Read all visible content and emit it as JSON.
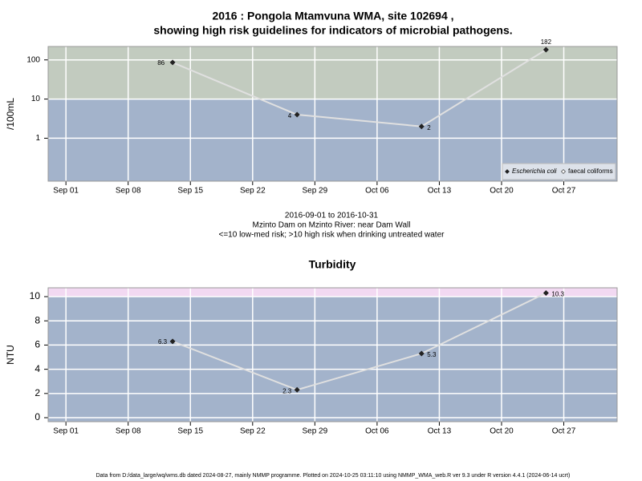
{
  "title": [
    "2016 : Pongola Mtamvuna WMA, site 102694 ,",
    "showing high risk guidelines for indicators of microbial pathogens."
  ],
  "subtitle": [
    "2016-09-01 to 2016-10-31",
    "Mzinto Dam on Mzinto River: near Dam Wall",
    "<=10 low-med risk; >10 high risk when drinking untreated water"
  ],
  "footer": "Data from D:/data_large/wq/wms.db dated 2024-08-27, mainly NMMP programme. Plotted on 2024-10-25 03:11:10 using NMMP_WMA_web.R ver 9.3 under R version 4.4.1 (2024-06-14 ucrt)",
  "chart_data": [
    {
      "type": "line",
      "ylabel": "/100mL",
      "log_y": true,
      "threshold": 10,
      "band_colors": [
        "#a3b3cb",
        "#c2cbbf"
      ],
      "xlim": [
        "2016-08-30",
        "2016-11-02"
      ],
      "xticks": [
        {
          "value": "2016-09-01",
          "label": "Sep 01"
        },
        {
          "value": "2016-09-08",
          "label": "Sep 08"
        },
        {
          "value": "2016-09-15",
          "label": "Sep 15"
        },
        {
          "value": "2016-09-22",
          "label": "Sep 22"
        },
        {
          "value": "2016-09-29",
          "label": "Sep 29"
        },
        {
          "value": "2016-10-06",
          "label": "Oct 06"
        },
        {
          "value": "2016-10-13",
          "label": "Oct 13"
        },
        {
          "value": "2016-10-20",
          "label": "Oct 20"
        },
        {
          "value": "2016-10-27",
          "label": "Oct 27"
        }
      ],
      "ylim": [
        0.08,
        220
      ],
      "yticks": [
        1,
        10,
        100
      ],
      "grid": true,
      "series": [
        {
          "x": [
            "2016-09-13",
            "2016-09-27",
            "2016-10-11",
            "2016-10-25"
          ],
          "values": [
            86,
            4,
            2,
            182
          ],
          "color": "#e0e0e0"
        }
      ],
      "legend": [
        {
          "label": "Escherichia coli",
          "marker": "filled"
        },
        {
          "label": "faecal coliforms",
          "marker": "open"
        }
      ],
      "legend_corner": "bottom-right"
    },
    {
      "type": "line",
      "title": "Turbidity",
      "ylabel": "NTU",
      "log_y": false,
      "threshold": 10,
      "band_colors": [
        "#a3b3cb",
        "#f2d9f2"
      ],
      "xlim": [
        "2016-08-30",
        "2016-11-02"
      ],
      "xticks": [
        {
          "value": "2016-09-01",
          "label": "Sep 01"
        },
        {
          "value": "2016-09-08",
          "label": "Sep 08"
        },
        {
          "value": "2016-09-15",
          "label": "Sep 15"
        },
        {
          "value": "2016-09-22",
          "label": "Sep 22"
        },
        {
          "value": "2016-09-29",
          "label": "Sep 29"
        },
        {
          "value": "2016-10-06",
          "label": "Oct 06"
        },
        {
          "value": "2016-10-13",
          "label": "Oct 13"
        },
        {
          "value": "2016-10-20",
          "label": "Oct 20"
        },
        {
          "value": "2016-10-27",
          "label": "Oct 27"
        }
      ],
      "ylim": [
        -0.33,
        10.73
      ],
      "yticks": [
        0,
        2,
        4,
        6,
        8,
        10
      ],
      "grid": true,
      "series": [
        {
          "x": [
            "2016-09-13",
            "2016-09-27",
            "2016-10-11",
            "2016-10-25"
          ],
          "values": [
            6.3,
            2.3,
            5.3,
            10.3
          ],
          "color": "#e0e0e0"
        }
      ]
    }
  ]
}
